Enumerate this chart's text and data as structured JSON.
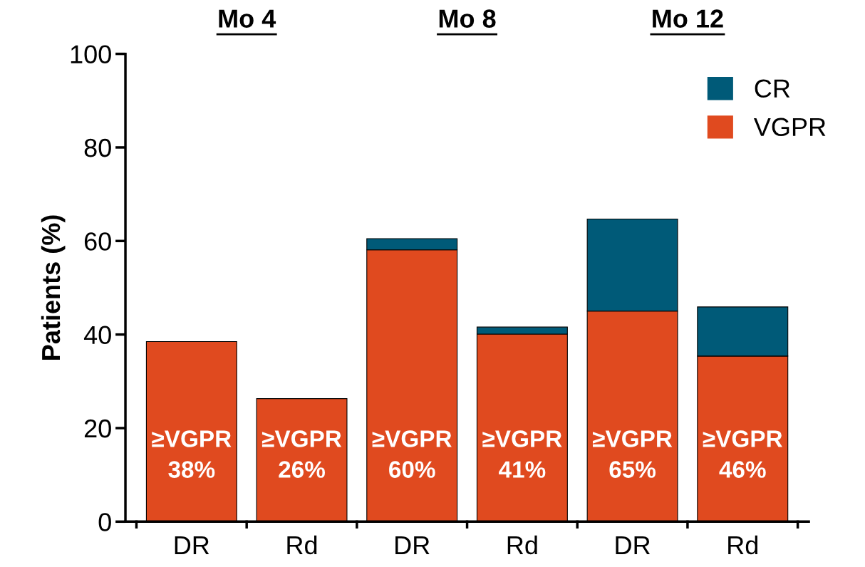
{
  "chart_data": {
    "type": "bar",
    "stacked": true,
    "ylabel": "Patients (%)",
    "categories": [
      "DR",
      "Rd",
      "DR",
      "Rd",
      "DR",
      "Rd"
    ],
    "series": [
      {
        "name": "VGPR",
        "color": "#e04a1f",
        "values": [
          38.5,
          26.3,
          58.1,
          40.1,
          45.0,
          35.4
        ]
      },
      {
        "name": "CR",
        "color": "#005a78",
        "values": [
          null,
          null,
          2.4,
          1.5,
          19.7,
          10.5
        ]
      }
    ],
    "totals": [
      "≥VGPR\n38%",
      "≥VGPR\n26%",
      "≥VGPR\n60%",
      "≥VGPR\n41%",
      "≥VGPR\n65%",
      "≥VGPR\n46%"
    ],
    "annotations": [
      "Mo 4",
      "Mo 8",
      "Mo 12"
    ],
    "ylim": [
      0,
      100
    ],
    "yticks": [
      0,
      20,
      40,
      60,
      80,
      100
    ],
    "grid": false,
    "legend": "top right"
  }
}
